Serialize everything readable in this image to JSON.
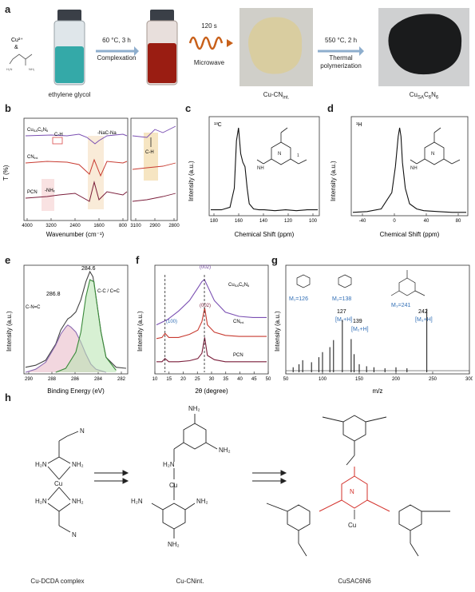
{
  "panels": {
    "a": {
      "label": "a",
      "reagents": {
        "cu": "Cu²⁺",
        "amp": "&"
      },
      "vial_caption": "ethylene glycol",
      "step1": {
        "above": "60 °C, 3 h",
        "below": "Complexation"
      },
      "step2": {
        "above": "120 s",
        "below": "Microwave"
      },
      "product1": "Cu-CN",
      "product1_sub": "int.",
      "step3": {
        "above": "550 °C, 2 h",
        "below1": "Thermal",
        "below2": "polymerization"
      },
      "product2": "Cu",
      "product2_sub1": "SA",
      "product2_mid": "C",
      "product2_sub2": "6",
      "product2_n": "N",
      "product2_sub3": "6"
    },
    "b": {
      "label": "b",
      "ylabel": "T (%)",
      "xlabel": "Wavenumber (cm⁻¹)",
      "ticks_left": [
        "4000",
        "3200",
        "2400",
        "1600",
        "800"
      ],
      "ticks_right": [
        "3100",
        "2900",
        "2800"
      ],
      "series": [
        "CuSAC6N6",
        "CNint.",
        "PCN"
      ],
      "annotations": {
        "ch": "C-H",
        "nacnn": "-NaC-Na",
        "nh": "-NHₓ",
        "ch2": "C-H"
      }
    },
    "c": {
      "label": "c",
      "nucleus": "¹³C",
      "ylabel": "Intensity (a.u.)",
      "xlabel": "Chemical Shift (ppm)",
      "ticks": [
        "180",
        "160",
        "140",
        "120",
        "100"
      ],
      "peak_labels": [
        "1",
        "2"
      ]
    },
    "d": {
      "label": "d",
      "nucleus": "¹H",
      "ylabel": "Intensity (a.u.)",
      "xlabel": "Chemical Shift (ppm)",
      "ticks": [
        "-40",
        "0",
        "40",
        "80"
      ],
      "peak_labels": [
        "1"
      ]
    },
    "e": {
      "label": "e",
      "ylabel": "Intensity (a.u.)",
      "xlabel": "Binding Energy (eV)",
      "ticks": [
        "290",
        "288",
        "286",
        "284",
        "282"
      ],
      "peaks": [
        {
          "value": "286.8",
          "name": "C-N=C"
        },
        {
          "value": "284.6",
          "name": "C-C / C=C"
        }
      ]
    },
    "f": {
      "label": "f",
      "ylabel": "Intensity (a.u.)",
      "xlabel": "2θ (degree)",
      "ticks": [
        "10",
        "15",
        "20",
        "25",
        "30",
        "35",
        "40",
        "45",
        "50"
      ],
      "series": [
        "CuSAC6N6",
        "CNint.",
        "PCN"
      ],
      "peaks": [
        "(002)",
        "(002)",
        "(100)"
      ]
    },
    "g": {
      "label": "g",
      "ylabel": "Intensity (a.u.)",
      "xlabel": "m/z",
      "ticks": [
        "50",
        "100",
        "150",
        "200",
        "250",
        "300"
      ],
      "masses": [
        "M₁=126",
        "M₂=138",
        "M₃=241"
      ],
      "peaks": [
        {
          "mz": "127",
          "ion": "[M₁+H]"
        },
        {
          "mz": "139",
          "ion": "[M₂+H]"
        },
        {
          "mz": "242",
          "ion": "[M₃+H]"
        }
      ]
    },
    "h": {
      "label": "h",
      "captions": [
        "Cu-DCDA complex",
        "Cu-CNint.",
        "CuSAC6N6"
      ]
    }
  },
  "chart_data": [
    {
      "type": "line",
      "panel": "c",
      "xlabel": "Chemical Shift (ppm)",
      "ylabel": "Intensity (a.u.)",
      "xlim": [
        190,
        90
      ],
      "series": [
        {
          "x": [
            190,
            180,
            172,
            168,
            166,
            164,
            162,
            160,
            158,
            156,
            154,
            150,
            145,
            140,
            130,
            120,
            110,
            100,
            90
          ],
          "y": [
            0.05,
            0.05,
            0.08,
            0.3,
            0.85,
            1.0,
            0.7,
            0.6,
            0.55,
            0.3,
            0.12,
            0.06,
            0.05,
            0.05,
            0.04,
            0.05,
            0.04,
            0.05,
            0.05
          ]
        }
      ]
    },
    {
      "type": "line",
      "panel": "d",
      "xlabel": "Chemical Shift (ppm)",
      "ylabel": "Intensity (a.u.)",
      "xlim": [
        -60,
        100
      ],
      "series": [
        {
          "x": [
            -60,
            -40,
            -20,
            -5,
            0,
            4,
            6,
            8,
            10,
            14,
            20,
            30,
            40,
            60,
            80,
            100
          ],
          "y": [
            0.02,
            0.03,
            0.06,
            0.25,
            0.55,
            0.9,
            1.0,
            0.9,
            0.6,
            0.3,
            0.12,
            0.06,
            0.04,
            0.03,
            0.02,
            0.02
          ]
        }
      ]
    },
    {
      "type": "area",
      "panel": "e",
      "xlabel": "Binding Energy (eV)",
      "ylabel": "Intensity (a.u.)",
      "xlim": [
        291,
        281
      ],
      "series": [
        {
          "x": [
            291,
            290,
            289,
            288,
            287.5,
            287,
            286.8,
            286.5,
            286,
            285.5,
            285,
            284.6,
            284.3,
            284,
            283.5,
            283,
            282,
            281
          ],
          "y": [
            0.05,
            0.07,
            0.12,
            0.28,
            0.42,
            0.5,
            0.53,
            0.55,
            0.6,
            0.72,
            0.9,
            1.0,
            0.95,
            0.75,
            0.4,
            0.15,
            0.05,
            0.04
          ]
        },
        {
          "x": [
            291,
            290,
            289,
            288,
            287.5,
            287,
            286.8,
            286.5,
            286,
            285.5,
            285,
            284.5,
            284,
            283
          ],
          "y": [
            0,
            0.03,
            0.1,
            0.27,
            0.38,
            0.45,
            0.47,
            0.45,
            0.4,
            0.3,
            0.18,
            0.08,
            0.03,
            0
          ]
        },
        {
          "x": [
            288,
            287,
            286,
            285.5,
            285,
            284.6,
            284.2,
            284,
            283.5,
            283,
            282
          ],
          "y": [
            0,
            0.04,
            0.2,
            0.4,
            0.75,
            0.92,
            0.9,
            0.75,
            0.4,
            0.15,
            0.02
          ]
        }
      ]
    },
    {
      "type": "line",
      "panel": "f",
      "xlabel": "2θ (degree)",
      "ylabel": "Intensity (a.u.)",
      "xlim": [
        10,
        50
      ],
      "series": [
        {
          "x": [
            10,
            14,
            18,
            22,
            25,
            26.5,
            27.4,
            28.5,
            31,
            35,
            40,
            45,
            50
          ],
          "y": [
            0.45,
            0.5,
            0.58,
            0.68,
            0.8,
            0.86,
            0.88,
            0.82,
            0.68,
            0.57,
            0.53,
            0.52,
            0.52
          ]
        },
        {
          "x": [
            10,
            12,
            13.1,
            14.5,
            18,
            22,
            25,
            26.5,
            27.5,
            28.5,
            31,
            35,
            40,
            45,
            50
          ],
          "y": [
            0.32,
            0.33,
            0.37,
            0.33,
            0.33,
            0.36,
            0.4,
            0.48,
            0.61,
            0.45,
            0.38,
            0.35,
            0.34,
            0.34,
            0.34
          ]
        },
        {
          "x": [
            10,
            12,
            13.1,
            14.5,
            18,
            22,
            25,
            26.5,
            27.5,
            28.5,
            31,
            35,
            40,
            45,
            50
          ],
          "y": [
            0.1,
            0.1,
            0.13,
            0.1,
            0.1,
            0.11,
            0.13,
            0.18,
            0.33,
            0.16,
            0.12,
            0.1,
            0.1,
            0.1,
            0.1
          ]
        }
      ]
    },
    {
      "type": "bar",
      "panel": "g",
      "xlabel": "m/z",
      "ylabel": "Intensity (a.u.)",
      "xlim": [
        50,
        300
      ],
      "x": [
        60,
        68,
        73,
        85,
        95,
        100,
        110,
        115,
        127,
        139,
        143,
        150,
        160,
        170,
        185,
        200,
        215,
        242
      ],
      "y": [
        0.05,
        0.08,
        0.12,
        0.1,
        0.15,
        0.2,
        0.25,
        0.32,
        0.52,
        0.33,
        0.18,
        0.08,
        0.06,
        0.05,
        0.04,
        0.05,
        0.04,
        0.63
      ]
    }
  ]
}
